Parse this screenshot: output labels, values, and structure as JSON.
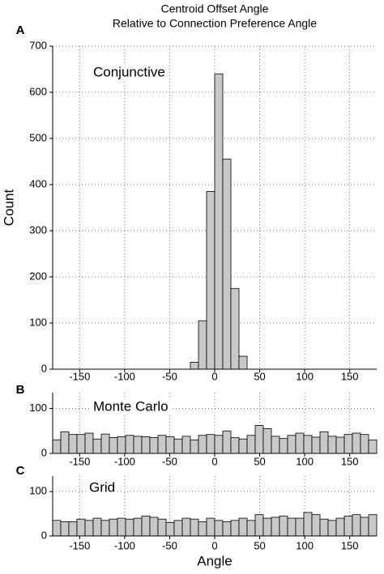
{
  "title": [
    "Centroid Offset Angle",
    "Relative to Connection Preference Angle"
  ],
  "chart_data": [
    {
      "type": "histogram",
      "label": "A",
      "annotation": "Conjunctive",
      "ylabel": "Count",
      "color": "#c8c8c8",
      "grid": true,
      "bins": [
        -180,
        -171,
        -162,
        -153,
        -144,
        -135,
        -126,
        -117,
        -108,
        -99,
        -90,
        -81,
        -72,
        -63,
        -54,
        -45,
        -36,
        -27,
        -18,
        -9,
        0,
        9,
        18,
        27,
        36,
        45,
        54,
        63,
        72,
        81,
        90,
        99,
        108,
        117,
        126,
        135,
        144,
        153,
        162,
        171,
        180
      ],
      "counts": [
        0,
        0,
        0,
        0,
        0,
        0,
        0,
        0,
        0,
        0,
        0,
        0,
        0,
        0,
        0,
        0,
        0,
        15,
        105,
        385,
        640,
        455,
        175,
        28,
        0,
        0,
        0,
        0,
        0,
        0,
        0,
        0,
        0,
        0,
        0,
        0,
        0,
        0,
        0,
        0
      ],
      "xlim": [
        -180,
        180
      ],
      "xticks": [
        -150,
        -100,
        -50,
        0,
        50,
        100,
        150
      ],
      "ylim": [
        0,
        700
      ],
      "yticks": [
        0,
        100,
        200,
        300,
        400,
        500,
        600,
        700
      ]
    },
    {
      "type": "histogram",
      "label": "B",
      "annotation": "Monte Carlo",
      "color": "#c8c8c8",
      "grid": true,
      "bins": [
        -180,
        -171,
        -162,
        -153,
        -144,
        -135,
        -126,
        -117,
        -108,
        -99,
        -90,
        -81,
        -72,
        -63,
        -54,
        -45,
        -36,
        -27,
        -18,
        -9,
        0,
        9,
        18,
        27,
        36,
        45,
        54,
        63,
        72,
        81,
        90,
        99,
        108,
        117,
        126,
        135,
        144,
        153,
        162,
        171,
        180
      ],
      "counts": [
        30,
        48,
        42,
        42,
        45,
        32,
        43,
        35,
        37,
        40,
        38,
        37,
        35,
        40,
        37,
        32,
        38,
        30,
        40,
        42,
        40,
        50,
        35,
        32,
        40,
        62,
        55,
        38,
        33,
        40,
        45,
        40,
        36,
        48,
        38,
        36,
        42,
        45,
        42,
        30
      ],
      "xlim": [
        -180,
        180
      ],
      "xticks": [
        -150,
        -100,
        -50,
        0,
        50,
        100,
        150
      ],
      "ylim": [
        0,
        135
      ],
      "yticks": [
        0,
        100
      ]
    },
    {
      "type": "histogram",
      "label": "C",
      "annotation": "Grid",
      "xlabel": "Angle",
      "color": "#c8c8c8",
      "grid": true,
      "bins": [
        -180,
        -171,
        -162,
        -153,
        -144,
        -135,
        -126,
        -117,
        -108,
        -99,
        -90,
        -81,
        -72,
        -63,
        -54,
        -45,
        -36,
        -27,
        -18,
        -9,
        0,
        9,
        18,
        27,
        36,
        45,
        54,
        63,
        72,
        81,
        90,
        99,
        108,
        117,
        126,
        135,
        144,
        153,
        162,
        171,
        180
      ],
      "counts": [
        35,
        32,
        32,
        38,
        35,
        40,
        35,
        38,
        40,
        38,
        40,
        45,
        42,
        38,
        30,
        35,
        40,
        38,
        32,
        40,
        35,
        32,
        35,
        40,
        35,
        48,
        40,
        42,
        45,
        40,
        40,
        53,
        48,
        38,
        35,
        40,
        45,
        48,
        42,
        48
      ],
      "xlim": [
        -180,
        180
      ],
      "xticks": [
        -150,
        -100,
        -50,
        0,
        50,
        100,
        150
      ],
      "ylim": [
        0,
        135
      ],
      "yticks": [
        0,
        100
      ]
    }
  ]
}
